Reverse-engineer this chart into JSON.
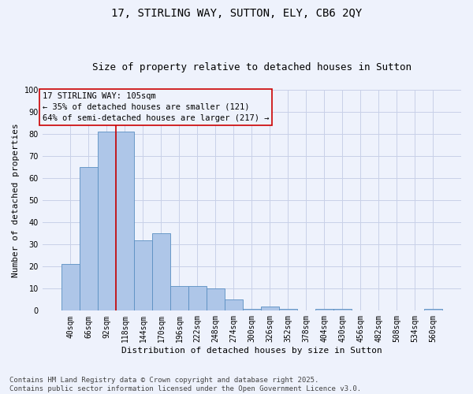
{
  "title1": "17, STIRLING WAY, SUTTON, ELY, CB6 2QY",
  "title2": "Size of property relative to detached houses in Sutton",
  "xlabel": "Distribution of detached houses by size in Sutton",
  "ylabel": "Number of detached properties",
  "categories": [
    "40sqm",
    "66sqm",
    "92sqm",
    "118sqm",
    "144sqm",
    "170sqm",
    "196sqm",
    "222sqm",
    "248sqm",
    "274sqm",
    "300sqm",
    "326sqm",
    "352sqm",
    "378sqm",
    "404sqm",
    "430sqm",
    "456sqm",
    "482sqm",
    "508sqm",
    "534sqm",
    "560sqm"
  ],
  "values": [
    21,
    65,
    81,
    81,
    32,
    35,
    11,
    11,
    10,
    5,
    1,
    2,
    1,
    0,
    1,
    1,
    0,
    0,
    0,
    0,
    1
  ],
  "bar_color": "#aec6e8",
  "bar_edge_color": "#5a8fc2",
  "vline_x": 2.5,
  "vline_color": "#cc0000",
  "annotation_text": "17 STIRLING WAY: 105sqm\n← 35% of detached houses are smaller (121)\n64% of semi-detached houses are larger (217) →",
  "annotation_box_color": "#cc0000",
  "ylim": [
    0,
    100
  ],
  "yticks": [
    0,
    10,
    20,
    30,
    40,
    50,
    60,
    70,
    80,
    90,
    100
  ],
  "footer_text": "Contains HM Land Registry data © Crown copyright and database right 2025.\nContains public sector information licensed under the Open Government Licence v3.0.",
  "bg_color": "#eef2fc",
  "grid_color": "#c8d0e8",
  "title_fontsize": 10,
  "subtitle_fontsize": 9,
  "axis_label_fontsize": 8,
  "tick_fontsize": 7,
  "annotation_fontsize": 7.5,
  "footer_fontsize": 6.5
}
